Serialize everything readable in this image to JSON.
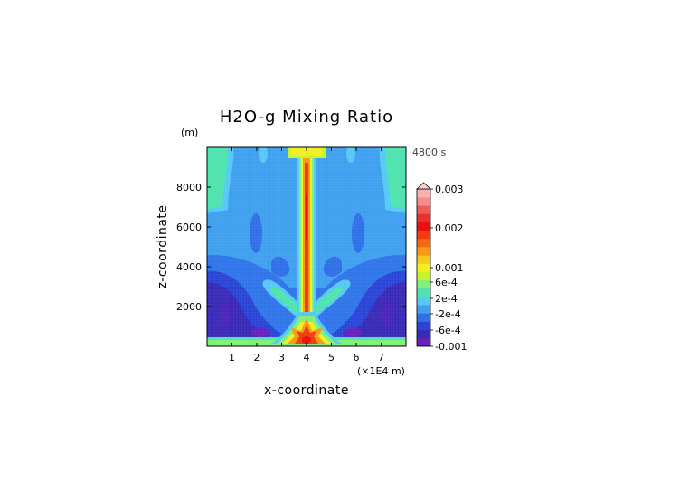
{
  "chart_data": {
    "type": "heatmap",
    "title": "H2O-g Mixing Ratio",
    "xlabel": "x-coordinate",
    "ylabel": "z-coordinate",
    "x_unit_label": "(×1E4 m)",
    "y_unit_label": "(m)",
    "time_label": "4800 s",
    "xlim": [
      0,
      8
    ],
    "ylim": [
      0,
      10000
    ],
    "x_ticks": [
      1,
      2,
      3,
      4,
      5,
      6,
      7
    ],
    "x_tick_labels": [
      "1",
      "2",
      "3",
      "4",
      "5",
      "6",
      "7"
    ],
    "y_ticks": [
      2000,
      4000,
      6000,
      8000
    ],
    "y_tick_labels": [
      "2000",
      "4000",
      "6000",
      "8000"
    ],
    "colorbar": {
      "label_values": [
        -0.001,
        -0.0006,
        -0.0002,
        0.0002,
        0.0006,
        0.001,
        0.002,
        0.003
      ],
      "labels": [
        "-0.001",
        "-6e-4",
        "-2e-4",
        "2e-4",
        "6e-4",
        "0.001",
        "0.002",
        "0.003"
      ],
      "level_colors": [
        "#6a1fbf",
        "#3a2ab8",
        "#2a45d6",
        "#2f70e8",
        "#3fa0f0",
        "#55c8f5",
        "#4fe3b0",
        "#7ff07a",
        "#c8f22a",
        "#f2ee20",
        "#f7c81a",
        "#f79a14",
        "#f56a10",
        "#f23c10",
        "#e81010",
        "#e83030",
        "#ee5a5a",
        "#f48c8c",
        "#f8b0b0"
      ],
      "extend_top": true
    },
    "field_description_values": {
      "background": -0.0002,
      "surface_layer": 0.0004,
      "plume_core": 0.002,
      "lower_flank_minimum": -0.001
    }
  },
  "colors": {
    "background": "#3fa0f0",
    "frame": "#000000"
  }
}
